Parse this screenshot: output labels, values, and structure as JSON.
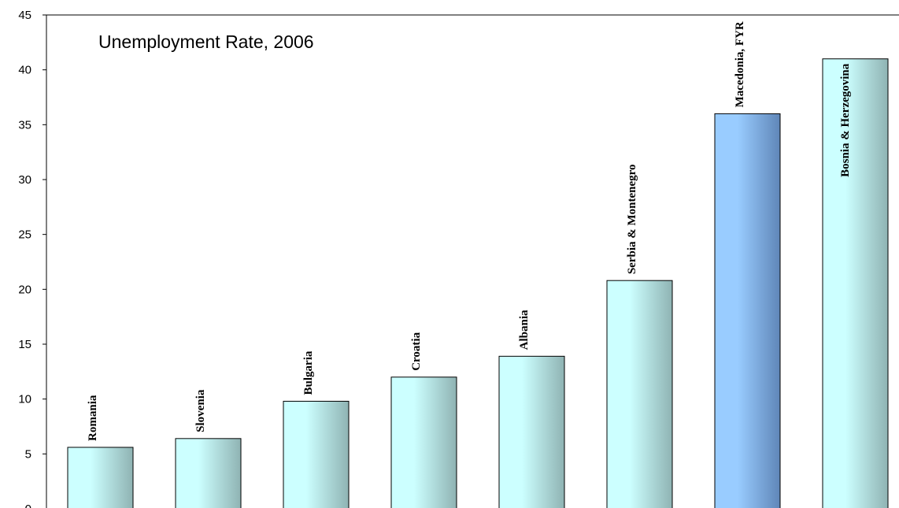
{
  "chart_data": {
    "type": "bar",
    "title": "Unemployment Rate, 2006",
    "xlabel": "",
    "ylabel": "",
    "ylim": [
      0,
      45
    ],
    "yticks": [
      0,
      5,
      10,
      15,
      20,
      25,
      30,
      35,
      40,
      45
    ],
    "grid": false,
    "legend": "none",
    "categories": [
      "Romania",
      "Slovenia",
      "Bulgaria",
      "Croatia",
      "Albania",
      "Serbia & Montenegro",
      "Macedonia, FYR",
      "Bosnia & Herzegovina"
    ],
    "values": [
      5.6,
      6.4,
      9.8,
      12.0,
      13.9,
      20.8,
      36.0,
      41.0
    ],
    "colors": {
      "bar_light": "#ccffff",
      "bar_dark": "#8fb3b3",
      "highlight_light": "#99ccff",
      "highlight_dark": "#5f86b8",
      "outline": "#000000"
    },
    "highlight_index": 6
  }
}
